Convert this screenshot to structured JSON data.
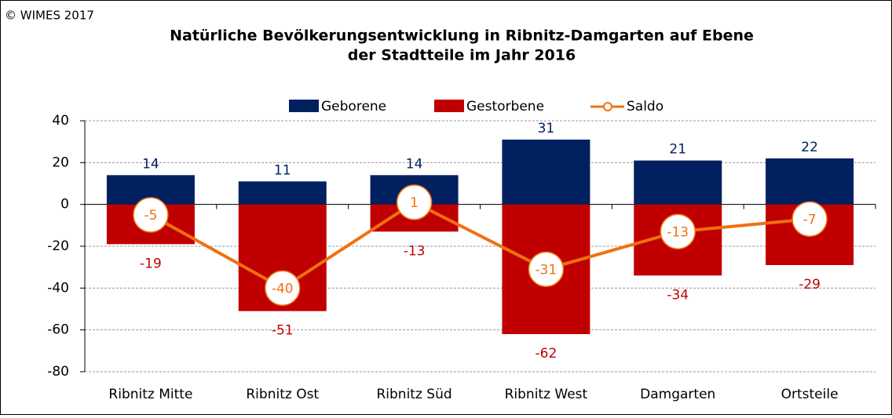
{
  "chart_data": {
    "type": "bar",
    "credit": "© WIMES 2017",
    "title": [
      "Natürliche Bevölkerungsentwicklung in Ribnitz-Damgarten auf Ebene",
      "der Stadtteile im Jahr 2016"
    ],
    "categories": [
      "Ribnitz Mitte",
      "Ribnitz Ost",
      "Ribnitz Süd",
      "Ribnitz West",
      "Damgarten",
      "Ortsteile"
    ],
    "series": [
      {
        "name": "Geborene",
        "kind": "bar",
        "color": "#002060",
        "values": [
          14,
          11,
          14,
          31,
          21,
          22
        ]
      },
      {
        "name": "Gestorbene",
        "kind": "bar",
        "color": "#c00000",
        "values": [
          -19,
          -51,
          -13,
          -62,
          -34,
          -29
        ]
      },
      {
        "name": "Saldo",
        "kind": "line",
        "color": "#f07010",
        "values": [
          -5,
          -40,
          1,
          -31,
          -13,
          -7
        ]
      }
    ],
    "ylim": [
      -80,
      40
    ],
    "yticks": [
      -80,
      -60,
      -40,
      -20,
      0,
      20,
      40
    ],
    "grid": true,
    "legend": "top"
  }
}
